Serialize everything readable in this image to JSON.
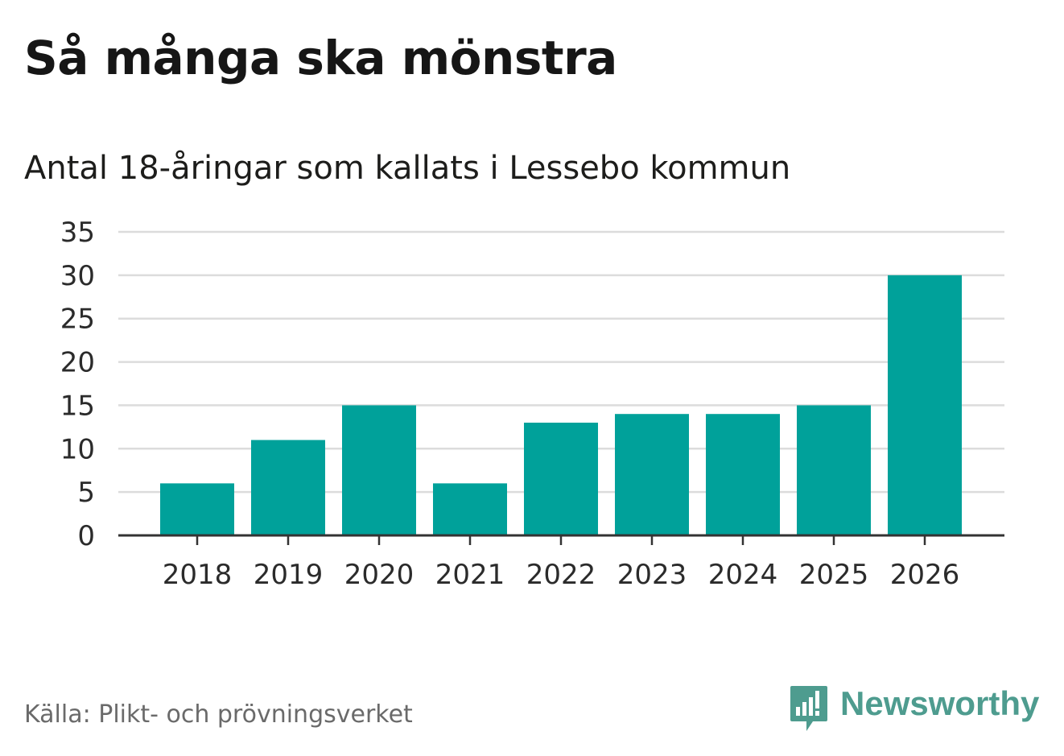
{
  "header": {
    "title": "Så många ska mönstra",
    "subtitle": "Antal 18-åringar som kallats i Lessebo kommun"
  },
  "footer": {
    "source": "Källa: Plikt- och prövningsverket",
    "brand": "Newsworthy"
  },
  "colors": {
    "bar": "#00a19a",
    "grid": "#dcdcdc",
    "axis": "#333333",
    "brand": "#4e9c8f"
  },
  "chart_data": {
    "type": "bar",
    "title": "Så många ska mönstra",
    "subtitle": "Antal 18-åringar som kallats i Lessebo kommun",
    "categories": [
      "2018",
      "2019",
      "2020",
      "2021",
      "2022",
      "2023",
      "2024",
      "2025",
      "2026"
    ],
    "values": [
      6,
      11,
      15,
      6,
      13,
      14,
      14,
      15,
      30
    ],
    "y_ticks": [
      0,
      5,
      10,
      15,
      20,
      25,
      30,
      35
    ],
    "ylim": [
      0,
      35
    ],
    "xlabel": "",
    "ylabel": "",
    "grid": true,
    "legend": "none"
  }
}
